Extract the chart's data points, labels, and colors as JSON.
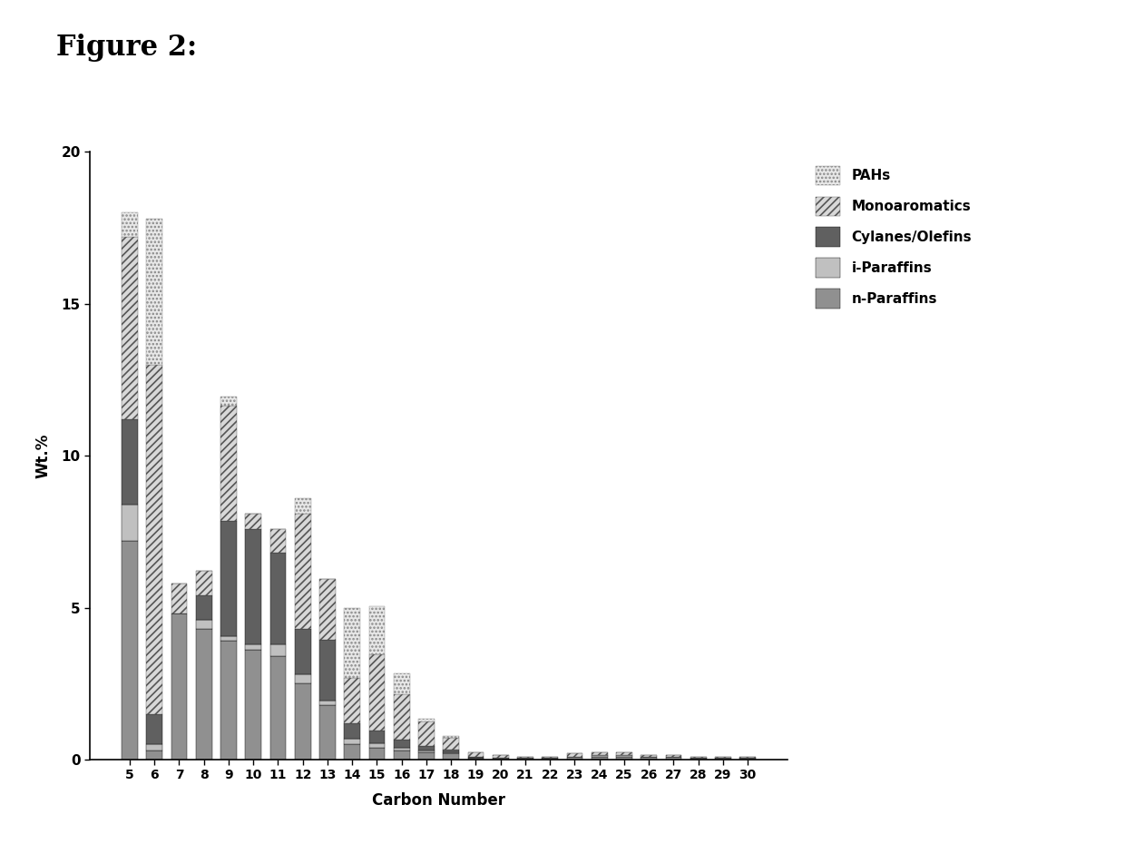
{
  "categories": [
    5,
    6,
    7,
    8,
    9,
    10,
    11,
    12,
    13,
    14,
    15,
    16,
    17,
    18,
    19,
    20,
    21,
    22,
    23,
    24,
    25,
    26,
    27,
    28,
    29,
    30
  ],
  "n_paraffins": [
    7.2,
    0.3,
    4.8,
    4.3,
    3.9,
    3.6,
    3.4,
    2.5,
    1.8,
    0.5,
    0.4,
    0.3,
    0.25,
    0.2,
    0.05,
    0.05,
    0.05,
    0.05,
    0.1,
    0.1,
    0.1,
    0.1,
    0.1,
    0.05,
    0.05,
    0.05
  ],
  "i_paraffins": [
    1.2,
    0.2,
    0.0,
    0.3,
    0.15,
    0.2,
    0.4,
    0.3,
    0.15,
    0.2,
    0.15,
    0.1,
    0.05,
    0.05,
    0.0,
    0.0,
    0.0,
    0.0,
    0.0,
    0.05,
    0.05,
    0.0,
    0.0,
    0.0,
    0.0,
    0.0
  ],
  "cylanes_olefins": [
    2.8,
    1.0,
    0.0,
    0.8,
    3.8,
    3.8,
    3.0,
    1.5,
    2.0,
    0.5,
    0.4,
    0.25,
    0.15,
    0.08,
    0.03,
    0.0,
    0.0,
    0.0,
    0.0,
    0.0,
    0.0,
    0.0,
    0.0,
    0.0,
    0.0,
    0.0
  ],
  "monoaromatics": [
    6.0,
    11.5,
    1.0,
    0.8,
    3.8,
    0.5,
    0.8,
    3.8,
    2.0,
    1.5,
    2.5,
    1.5,
    0.8,
    0.4,
    0.15,
    0.1,
    0.05,
    0.05,
    0.1,
    0.1,
    0.1,
    0.05,
    0.05,
    0.05,
    0.05,
    0.05
  ],
  "pahs": [
    0.8,
    4.8,
    0.0,
    0.0,
    0.3,
    0.0,
    0.0,
    0.5,
    0.0,
    2.3,
    1.6,
    0.7,
    0.1,
    0.05,
    0.0,
    0.0,
    0.0,
    0.0,
    0.0,
    0.0,
    0.0,
    0.0,
    0.0,
    0.0,
    0.0,
    0.0
  ],
  "ylabel": "Wt.%",
  "xlabel": "Carbon Number",
  "ylim": [
    0,
    20
  ],
  "yticks": [
    0,
    5,
    10,
    15,
    20
  ],
  "color_n_paraffins": "#909090",
  "color_i_paraffins": "#c0c0c0",
  "color_cylanes_olefins": "#606060",
  "bar_width": 0.65,
  "legend_labels": [
    "PAHs",
    "Monoaromatics",
    "Cylanes/Olefins",
    "i-Paraffins",
    "n-Paraffins"
  ],
  "figure_title": "Figure 2:"
}
